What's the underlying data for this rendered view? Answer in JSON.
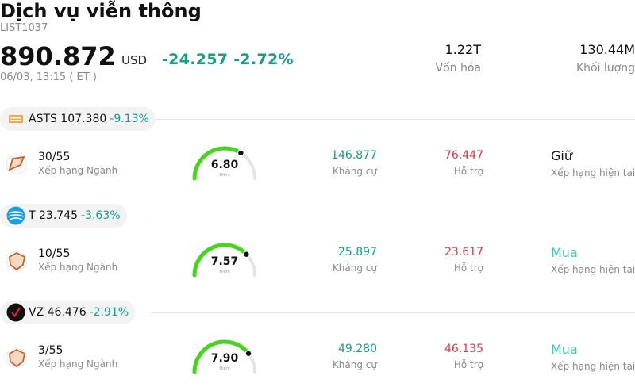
{
  "header": {
    "title": "Dịch vụ viễn thông",
    "code": "LIST1037",
    "price": "890.872",
    "currency": "USD",
    "change": "-24.257",
    "change_pct": "-2.72%",
    "timestamp": "06/03, 13:15  ( ET )",
    "market_cap_value": "1.22T",
    "market_cap_label": "Vốn hóa",
    "volume_value": "130.44M",
    "volume_label": "Khối lượng"
  },
  "colors": {
    "positive": "#12a089",
    "support": "#e0394a",
    "buy": "#3cc8c0",
    "gauge_fill": "#44d61a",
    "gauge_track": "#e3e3ea"
  },
  "stocks": [
    {
      "ticker": "ASTS",
      "price": "107.380",
      "change_pct": "-9.13%",
      "logo_icon": "asts-logo-icon",
      "rank": "30/55",
      "rank_label": "Xếp hạng Ngành",
      "score": "6.80",
      "score_value": 6.8,
      "score_label": "Điểm",
      "resistance": "146.877",
      "resistance_label": "Kháng cự",
      "support": "76.447",
      "support_label": "Hỗ trợ",
      "rating": "Giữ",
      "rating_label": "Xếp hạng hiện tại"
    },
    {
      "ticker": "T",
      "price": "23.745",
      "change_pct": "-3.63%",
      "logo_icon": "att-logo-icon",
      "rank": "10/55",
      "rank_label": "Xếp hạng Ngành",
      "score": "7.57",
      "score_value": 7.57,
      "score_label": "Điểm",
      "resistance": "25.897",
      "resistance_label": "Kháng cự",
      "support": "23.617",
      "support_label": "Hỗ trợ",
      "rating": "Mua",
      "rating_label": "Xếp hạng hiện tại"
    },
    {
      "ticker": "VZ",
      "price": "46.476",
      "change_pct": "-2.91%",
      "logo_icon": "verizon-logo-icon",
      "rank": "3/55",
      "rank_label": "Xếp hạng Ngành",
      "score": "7.90",
      "score_value": 7.9,
      "score_label": "Điểm",
      "resistance": "49.280",
      "resistance_label": "Kháng cự",
      "support": "46.135",
      "support_label": "Hỗ trợ",
      "rating": "Mua",
      "rating_label": "Xếp hạng hiện tại"
    }
  ]
}
